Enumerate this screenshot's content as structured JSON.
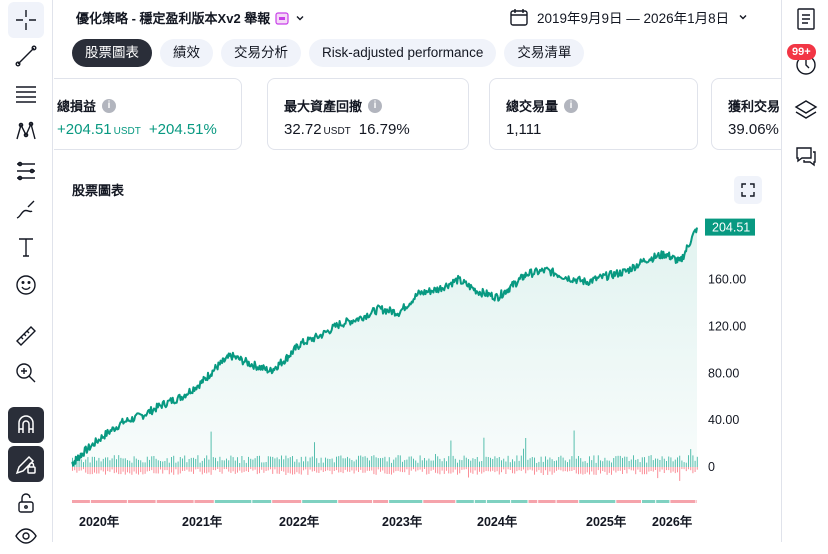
{
  "header": {
    "strategy_title": "優化策略 - 穩定盈利版本Xv2 舉報",
    "date_range": "2019年9月9日 — 2026年1月8日"
  },
  "tabs": [
    {
      "label": "股票圖表",
      "active": true
    },
    {
      "label": "績效",
      "active": false
    },
    {
      "label": "交易分析",
      "active": false
    },
    {
      "label": "Risk-adjusted performance",
      "active": false
    },
    {
      "label": "交易清單",
      "active": false
    }
  ],
  "stats": [
    {
      "label": "總損益",
      "value": "+204.51",
      "unit": "USDT",
      "extra": "+204.51%",
      "positive": true
    },
    {
      "label": "最大資產回撤",
      "value": "32.72",
      "unit": "USDT",
      "extra": "16.79%",
      "positive": false
    },
    {
      "label": "總交易量",
      "value": "1,111",
      "unit": "",
      "extra": "",
      "positive": false
    },
    {
      "label": "獲利交易",
      "value": "39.06%",
      "unit": "",
      "extra": "",
      "positive": false
    }
  ],
  "chart_title": "股票圖表",
  "notifications_badge": "99+",
  "colors": {
    "accent": "#089981",
    "loss": "#f23645",
    "dark": "#2a2e39"
  },
  "chart_data": {
    "type": "area",
    "x_ticks": [
      "2020年",
      "2021年",
      "2022年",
      "2023年",
      "2024年",
      "2025年",
      "2026年"
    ],
    "y_ticks": [
      "0",
      "40.00",
      "80.00",
      "120.00",
      "160.00"
    ],
    "ylim": [
      -8,
      205
    ],
    "last_value": "204.51",
    "last_value_num": 204.51,
    "series": [
      {
        "x": [
          2019.69,
          2019.8,
          2020.0,
          2020.2,
          2020.4,
          2020.6,
          2020.8,
          2021.0,
          2021.15,
          2021.3,
          2021.5,
          2021.7,
          2021.85,
          2022.0,
          2022.2,
          2022.4,
          2022.6,
          2022.8,
          2023.0,
          2023.2,
          2023.4,
          2023.6,
          2023.8,
          2024.0,
          2024.15,
          2024.3,
          2024.5,
          2024.7,
          2024.9,
          2025.1,
          2025.3,
          2025.5,
          2025.7,
          2025.85,
          2026.02
        ],
        "values": [
          3,
          12,
          26,
          38,
          44,
          53,
          60,
          72,
          85,
          95,
          88,
          82,
          92,
          105,
          112,
          122,
          127,
          135,
          132,
          148,
          152,
          160,
          150,
          145,
          155,
          165,
          168,
          162,
          158,
          163,
          167,
          177,
          182,
          175,
          204.51
        ]
      }
    ],
    "grid": false,
    "legend": "none"
  }
}
